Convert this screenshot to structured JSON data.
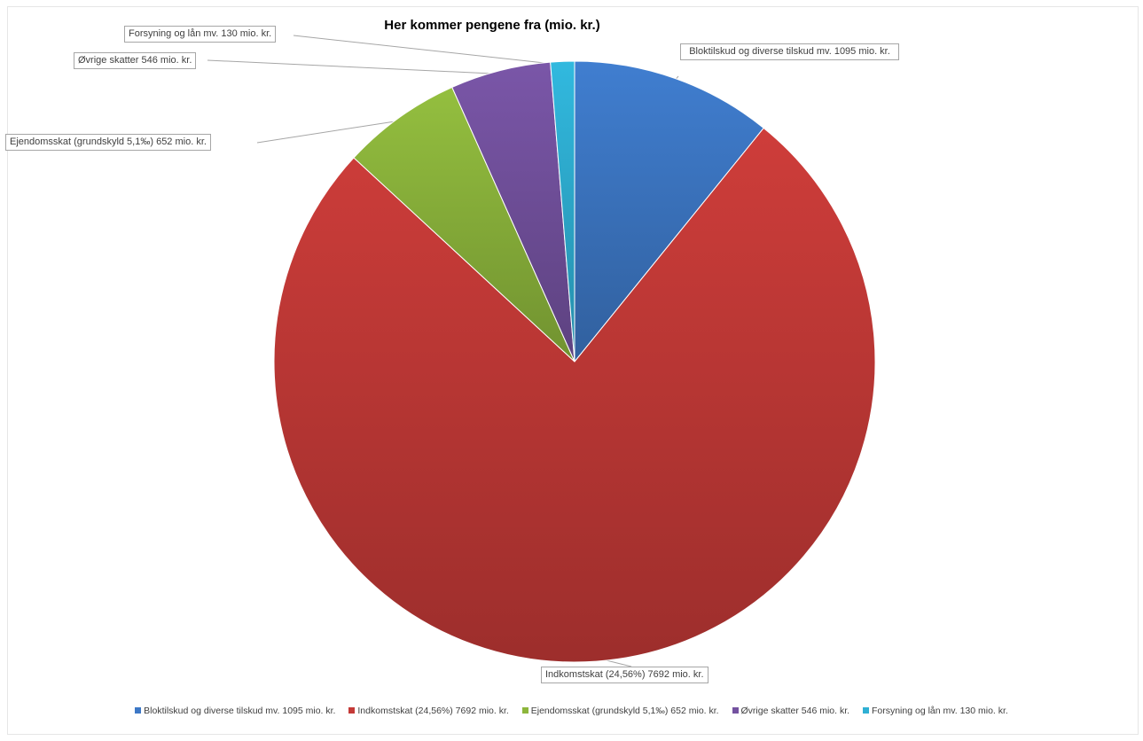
{
  "chart_data": {
    "type": "pie",
    "title": "Her kommer pengene fra (mio. kr.)",
    "slices": [
      {
        "label": "Bloktilskud og diverse tilskud mv.  1095 mio. kr.",
        "value": 1095,
        "color": "#3d78c6"
      },
      {
        "label": "Indkomstskat (24,56%)  7692 mio. kr.",
        "value": 7692,
        "color": "#c43a37"
      },
      {
        "label": "Ejendomsskat (grundskyld 5,1‰)  652 mio. kr.",
        "value": 652,
        "color": "#8db63c"
      },
      {
        "label": "Øvrige skatter 546 mio. kr.",
        "value": 546,
        "color": "#7452a0"
      },
      {
        "label": "Forsyning og lån mv. 130 mio. kr.",
        "value": 130,
        "color": "#2fb0d4"
      }
    ],
    "legend_position": "bottom",
    "start_angle": "top, clockwise"
  }
}
